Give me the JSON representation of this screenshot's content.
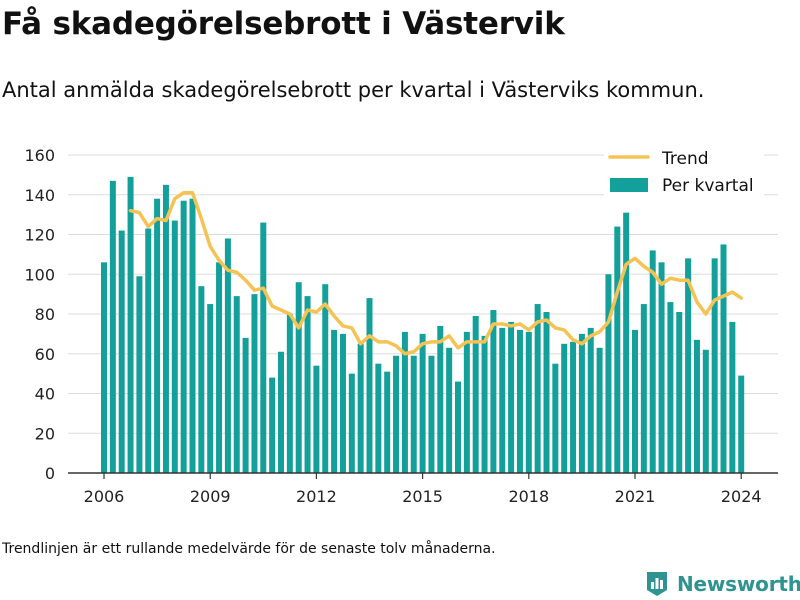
{
  "header": {
    "title": "Få skadegörelsebrott i Västervik",
    "subtitle": "Antal anmälda skadegörelsebrott per kvartal i Västerviks kommun."
  },
  "footnote": "Trendlinjen är ett rullande medelvärde för de senaste tolv månaderna.",
  "brand": {
    "name": "Newsworthy",
    "icon": "newsworthy-logo-icon"
  },
  "colors": {
    "bars": "#13a09a",
    "trend": "#f5c354",
    "grid": "#dddddd",
    "axis": "#333333",
    "brand": "#2f9491"
  },
  "chart_data": {
    "type": "bar",
    "x_unit": "quarter",
    "start": "2006 Q1",
    "x_ticks": [
      "2006",
      "2009",
      "2012",
      "2015",
      "2018",
      "2021",
      "2024"
    ],
    "y_ticks": [
      "0",
      "20",
      "40",
      "60",
      "80",
      "100",
      "120",
      "140",
      "160"
    ],
    "ylim": [
      0,
      160
    ],
    "grid": true,
    "legend": {
      "position": "top-right"
    },
    "series": [
      {
        "name": "Per kvartal",
        "type": "bar",
        "values": [
          106,
          147,
          122,
          149,
          99,
          123,
          138,
          145,
          127,
          137,
          138,
          94,
          85,
          106,
          118,
          89,
          68,
          90,
          126,
          48,
          61,
          80,
          96,
          89,
          54,
          95,
          72,
          70,
          50,
          65,
          88,
          55,
          51,
          59,
          71,
          59,
          70,
          59,
          74,
          63,
          46,
          71,
          79,
          69,
          82,
          73,
          76,
          72,
          71,
          85,
          81,
          55,
          65,
          66,
          70,
          73,
          63,
          100,
          124,
          131,
          72,
          85,
          112,
          106,
          86,
          81,
          108,
          67,
          62,
          108,
          115,
          76,
          49
        ]
      },
      {
        "name": "Trend",
        "type": "line",
        "values": [
          null,
          null,
          null,
          132,
          131,
          124,
          128,
          127,
          138,
          141,
          141,
          128,
          114,
          107,
          102,
          101,
          97,
          92,
          93,
          84,
          82,
          80,
          73,
          82,
          81,
          85,
          79,
          74,
          73,
          65,
          69,
          66,
          66,
          64,
          60,
          61,
          65,
          66,
          66,
          69,
          63,
          66,
          66,
          66,
          75,
          75,
          74,
          75,
          72,
          76,
          77,
          73,
          72,
          67,
          65,
          69,
          71,
          76,
          91,
          105,
          108,
          104,
          101,
          95,
          98,
          97,
          97,
          86,
          80,
          87,
          89,
          91,
          88
        ]
      }
    ]
  }
}
